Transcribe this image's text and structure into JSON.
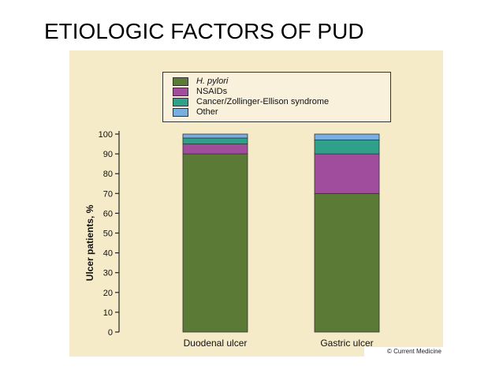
{
  "slide": {
    "title": "ETIOLOGIC FACTORS OF PUD"
  },
  "credit": "© Current Medicine",
  "colors": {
    "panel_background": "#f6ebc9",
    "h_pylori": "#5a7a35",
    "nsaids": "#a04d9e",
    "cancer_zes": "#2fa089",
    "other": "#79aee0"
  },
  "chart_data": {
    "type": "bar",
    "stacked": true,
    "title": "",
    "xlabel": "",
    "ylabel": "Ulcer patients, %",
    "ylim": [
      0,
      100
    ],
    "yticks": [
      0,
      10,
      20,
      30,
      40,
      50,
      60,
      70,
      80,
      90,
      100
    ],
    "categories": [
      "Duodenal ulcer",
      "Gastric ulcer"
    ],
    "series": [
      {
        "name": "H. pylori",
        "values": [
          90,
          70
        ],
        "color": "#5a7a35"
      },
      {
        "name": "NSAIDs",
        "values": [
          5,
          20
        ],
        "color": "#a04d9e"
      },
      {
        "name": "Cancer/Zollinger-Ellison syndrome",
        "values": [
          3,
          7
        ],
        "color": "#2fa089"
      },
      {
        "name": "Other",
        "values": [
          2,
          3
        ],
        "color": "#79aee0"
      }
    ],
    "legend_position": "top"
  }
}
